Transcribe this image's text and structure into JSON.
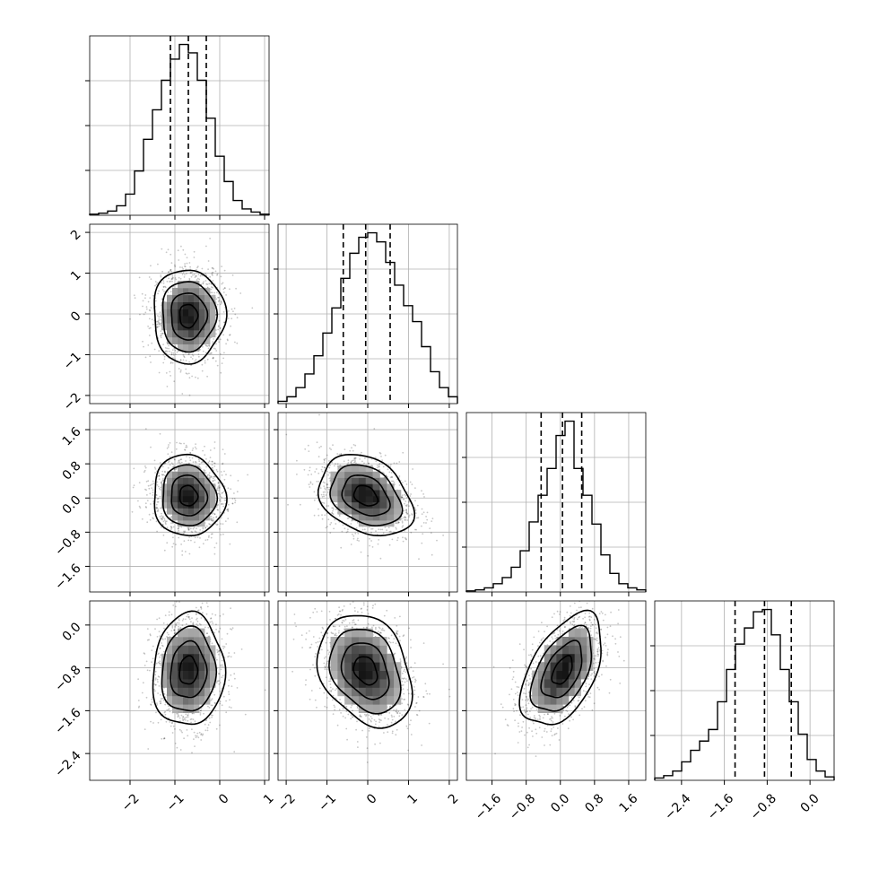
{
  "chart_data": {
    "type": "corner",
    "title": "",
    "params": [
      {
        "range": [
          -2.9,
          1.1
        ],
        "ticks": [
          -2,
          -1,
          0,
          1
        ],
        "tick_labels": [
          "−2",
          "−1",
          "0",
          "1"
        ],
        "quantiles": [
          -1.1,
          -0.7,
          -0.3
        ],
        "hist": [
          0.5,
          1,
          2,
          4.5,
          10,
          21,
          36,
          50,
          64,
          74,
          81,
          77,
          64,
          46,
          28,
          16,
          7,
          3,
          1.5,
          0.5
        ]
      },
      {
        "range": [
          -2.2,
          2.2
        ],
        "ticks": [
          -2,
          -1,
          0,
          1,
          2
        ],
        "tick_labels": [
          "−2",
          "−1",
          "0",
          "1",
          "2"
        ],
        "quantiles": [
          -0.6,
          -0.05,
          0.55
        ],
        "hist": [
          1,
          3,
          7,
          13,
          21,
          31,
          42,
          55,
          66,
          73,
          75,
          71,
          62,
          52,
          43,
          36,
          25,
          14,
          7,
          3
        ]
      },
      {
        "range": [
          -2.2,
          2.0
        ],
        "ticks": [
          -1.6,
          -0.8,
          0.0,
          0.8,
          1.6
        ],
        "tick_labels": [
          "−1.6",
          "−0.8",
          "0.0",
          "0.8",
          "1.6"
        ],
        "quantiles": [
          -0.45,
          0.05,
          0.5
        ],
        "hist": [
          0.5,
          1,
          2,
          4,
          7,
          12,
          20,
          34,
          47,
          60,
          76,
          83,
          60,
          47,
          33,
          18,
          9,
          4,
          2,
          1
        ]
      },
      {
        "range": [
          -2.9,
          0.45
        ],
        "ticks": [
          -2.4,
          -1.6,
          -0.8,
          0.0
        ],
        "tick_labels": [
          "−2.4",
          "−1.6",
          "−0.8",
          "0.0"
        ],
        "quantiles": [
          -1.4,
          -0.85,
          -0.35
        ],
        "hist": [
          1,
          2,
          4,
          8,
          13,
          17,
          22,
          34,
          48,
          59,
          66,
          73,
          74,
          63,
          48,
          34,
          20,
          9,
          4,
          1.5
        ]
      }
    ],
    "corr": {
      "1-0": 0.0,
      "2-0": -0.05,
      "2-1": -0.3,
      "3-0": 0.05,
      "3-1": -0.28,
      "3-2": 0.5
    },
    "contour_levels_sigma": [
      0.5,
      1.0,
      1.5,
      2.0
    ],
    "grid": true
  }
}
